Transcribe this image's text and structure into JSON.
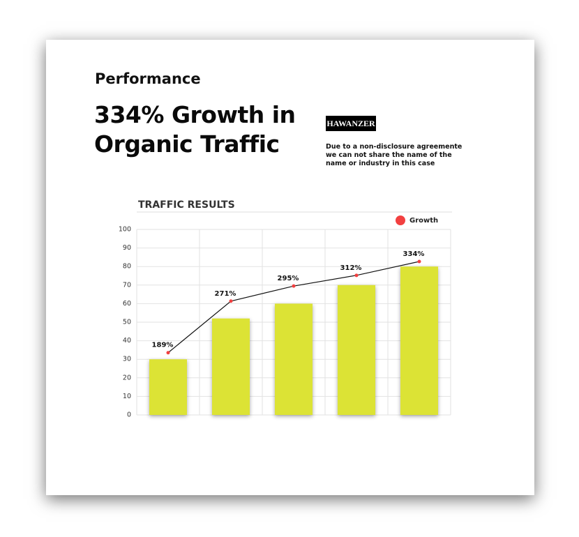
{
  "header": {
    "kicker": "Performance",
    "title_line1": "334% Growth in",
    "title_line2": "Organic Traffic",
    "logo": "HAWANZER",
    "note": [
      "Due to a non-disclosure agreemente",
      "we can not share the name of the",
      "name or industry in this case"
    ]
  },
  "chart_data": {
    "type": "bar",
    "title": "TRAFFIC RESULTS",
    "categories": [
      null,
      null,
      null,
      null,
      null
    ],
    "series": [
      {
        "name": null,
        "color": "#dce336",
        "values": [
          30,
          52,
          60,
          70,
          80
        ]
      },
      {
        "name": "Growth",
        "type": "line",
        "axis": "y2",
        "color": "#f24040",
        "line_color": "#111111",
        "values": [
          189,
          271,
          295,
          312,
          334
        ],
        "value_labels": [
          "189%",
          "271%",
          "295%",
          "312%",
          "334%"
        ]
      }
    ],
    "ylim": [
      0,
      100
    ],
    "yticks": [
      0,
      10,
      20,
      30,
      40,
      50,
      60,
      70,
      80,
      90,
      100
    ],
    "y2lim": [
      90,
      385
    ],
    "grid": true,
    "legend": "top-right"
  }
}
